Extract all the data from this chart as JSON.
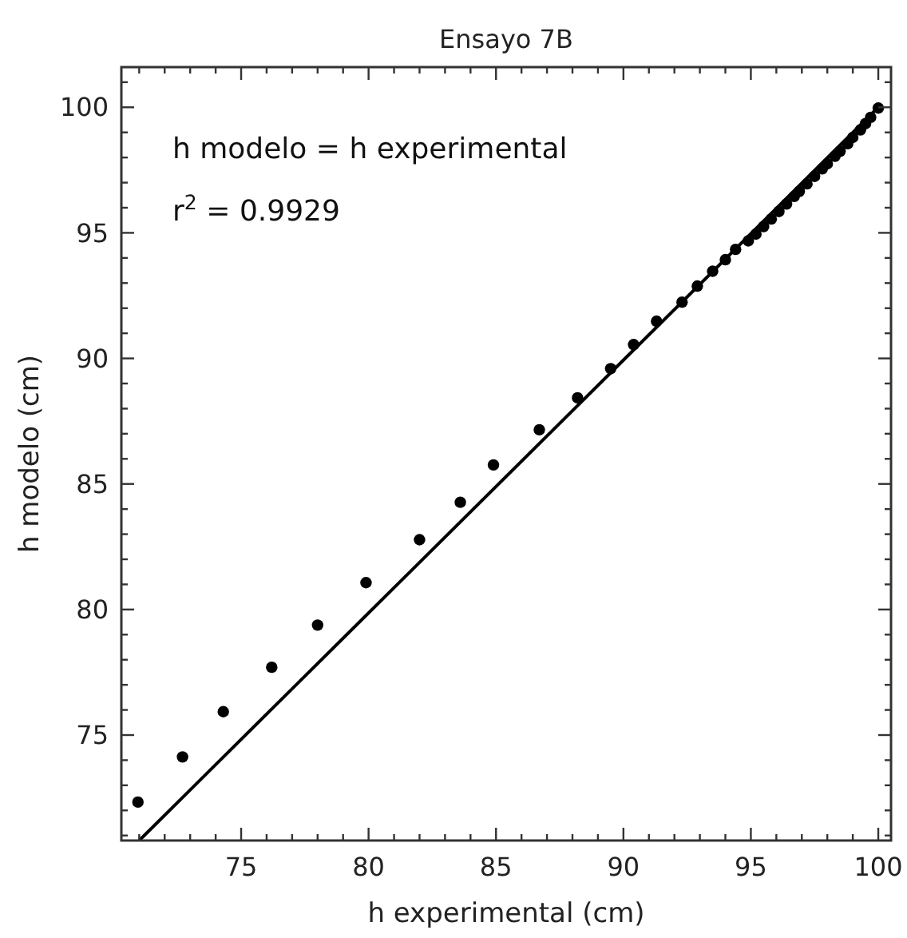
{
  "chart_data": {
    "type": "scatter",
    "title": "Ensayo 7B",
    "xlabel": "h experimental (cm)",
    "ylabel": "h modelo (cm)",
    "annotations": [
      "h modelo = h experimental",
      "r$^{2}$ = 0.9929"
    ],
    "xlim": [
      70.3,
      100.5
    ],
    "ylim": [
      70.8,
      101.6
    ],
    "xticks": [
      {
        "value": 71,
        "label": null
      },
      {
        "value": 72,
        "label": null
      },
      {
        "value": 73,
        "label": null
      },
      {
        "value": 74,
        "label": null
      },
      75,
      {
        "value": 76,
        "label": null
      },
      {
        "value": 77,
        "label": null
      },
      {
        "value": 78,
        "label": null
      },
      {
        "value": 79,
        "label": null
      },
      80,
      {
        "value": 81,
        "label": null
      },
      {
        "value": 82,
        "label": null
      },
      {
        "value": 83,
        "label": null
      },
      {
        "value": 84,
        "label": null
      },
      85,
      {
        "value": 86,
        "label": null
      },
      {
        "value": 87,
        "label": null
      },
      {
        "value": 88,
        "label": null
      },
      {
        "value": 89,
        "label": null
      },
      90,
      {
        "value": 91,
        "label": null
      },
      {
        "value": 92,
        "label": null
      },
      {
        "value": 93,
        "label": null
      },
      {
        "value": 94,
        "label": null
      },
      95,
      {
        "value": 96,
        "label": null
      },
      {
        "value": 97,
        "label": null
      },
      {
        "value": 98,
        "label": null
      },
      {
        "value": 99,
        "label": null
      },
      100
    ],
    "yticks": [
      {
        "value": 71,
        "label": null
      },
      {
        "value": 72,
        "label": null
      },
      {
        "value": 73,
        "label": null
      },
      {
        "value": 74,
        "label": null
      },
      75,
      {
        "value": 76,
        "label": null
      },
      {
        "value": 77,
        "label": null
      },
      {
        "value": 78,
        "label": null
      },
      {
        "value": 79,
        "label": null
      },
      80,
      {
        "value": 81,
        "label": null
      },
      {
        "value": 82,
        "label": null
      },
      {
        "value": 83,
        "label": null
      },
      {
        "value": 84,
        "label": null
      },
      85,
      {
        "value": 86,
        "label": null
      },
      {
        "value": 87,
        "label": null
      },
      {
        "value": 88,
        "label": null
      },
      {
        "value": 89,
        "label": null
      },
      90,
      {
        "value": 91,
        "label": null
      },
      {
        "value": 92,
        "label": null
      },
      {
        "value": 93,
        "label": null
      },
      {
        "value": 94,
        "label": null
      },
      95,
      {
        "value": 96,
        "label": null
      },
      {
        "value": 97,
        "label": null
      },
      {
        "value": 98,
        "label": null
      },
      {
        "value": 99,
        "label": null
      },
      100,
      {
        "value": 101,
        "label": null
      }
    ],
    "series": [
      {
        "marker": "circle",
        "color": "#000000",
        "x": [
          70.95,
          72.7,
          74.3,
          76.2,
          78.0,
          79.9,
          82.0,
          83.6,
          84.9,
          86.7,
          88.2,
          89.5,
          90.4,
          91.3,
          92.3,
          92.9,
          93.5,
          94.0,
          94.4,
          94.9,
          95.2,
          95.5,
          95.8,
          96.1,
          96.4,
          96.7,
          96.9,
          97.2,
          97.5,
          97.8,
          98.0,
          98.3,
          98.5,
          98.8,
          99.0,
          99.3,
          99.5,
          99.7,
          100.0
        ],
        "values": [
          72.33,
          74.13,
          75.93,
          77.7,
          79.38,
          81.07,
          82.78,
          84.27,
          85.76,
          87.16,
          88.43,
          89.59,
          90.55,
          91.48,
          92.24,
          92.88,
          93.47,
          93.93,
          94.34,
          94.68,
          94.95,
          95.25,
          95.55,
          95.85,
          96.15,
          96.45,
          96.65,
          96.95,
          97.25,
          97.55,
          97.75,
          98.05,
          98.25,
          98.55,
          98.8,
          99.1,
          99.35,
          99.6,
          99.97
        ]
      },
      {
        "type": "line",
        "color": "#000000",
        "x": [
          71.0,
          100.0
        ],
        "values": [
          70.8,
          100.0
        ]
      }
    ]
  }
}
